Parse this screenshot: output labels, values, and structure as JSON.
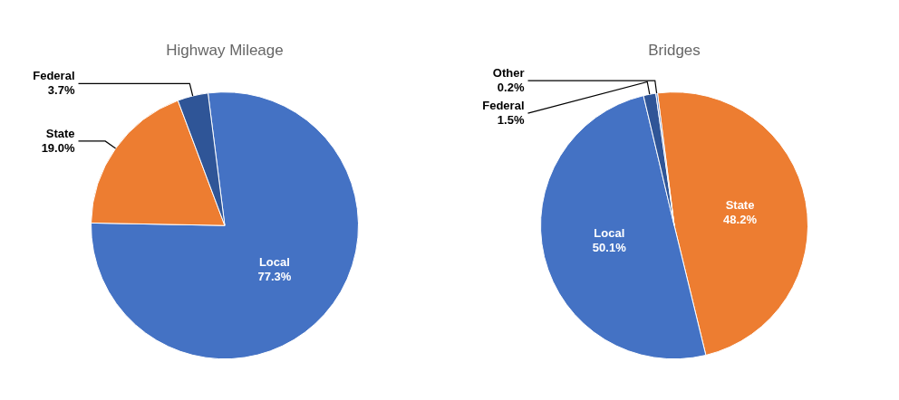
{
  "chart_data": [
    {
      "type": "pie",
      "title": "Highway Mileage",
      "categories": [
        "Local",
        "State",
        "Federal"
      ],
      "values": [
        77.3,
        19.0,
        3.7
      ],
      "value_labels": [
        "77.3%",
        "19.0%",
        "3.7%"
      ],
      "colors": [
        "#4472C4",
        "#ED7D31",
        "#2F5597"
      ],
      "data_labels": true
    },
    {
      "type": "pie",
      "title": "Bridges",
      "categories": [
        "State",
        "Local",
        "Federal",
        "Other"
      ],
      "values": [
        48.2,
        50.1,
        1.5,
        0.2
      ],
      "value_labels": [
        "48.2%",
        "50.1%",
        "1.5%",
        "0.2%"
      ],
      "colors": [
        "#ED7D31",
        "#4472C4",
        "#2F5597",
        "#4472C4"
      ],
      "data_labels": true
    }
  ]
}
